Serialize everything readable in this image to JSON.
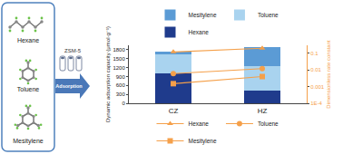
{
  "diagram": {
    "molecules": [
      "Hexane",
      "Toluene",
      "Mesitylene"
    ],
    "zeolite": "ZSM-5",
    "arrow": "Adsorption"
  },
  "chart_data": {
    "type": "bar",
    "stacked": true,
    "grid": false,
    "legend": "top",
    "log": "y2",
    "categories": [
      "CZ",
      "HZ"
    ],
    "y_label": "Dynamic adsorption capacity (μmol·g⁻¹)",
    "y2_label": "Dimensionless rate constant",
    "ylim": [
      0,
      1950
    ],
    "yticks": [
      0,
      300,
      600,
      900,
      1200,
      1500,
      1800
    ],
    "y2lim": [
      0.0001,
      0.3
    ],
    "y2ticks": [
      {
        "value": 0.0001,
        "label": "1E-4"
      },
      0.001,
      0.01,
      0.1
    ],
    "series": [
      {
        "name": "Hexane",
        "type": "bar",
        "color": "#1f3b8c",
        "values": [
          1010,
          440
        ]
      },
      {
        "name": "Toluene",
        "type": "bar",
        "color": "#a9d3ef",
        "values": [
          630,
          800
        ]
      },
      {
        "name": "Mesitylene",
        "type": "bar",
        "color": "#5b9bd5",
        "values": [
          90,
          650
        ]
      },
      {
        "name": "Hexane",
        "type": "line",
        "axis": "y2",
        "marker": "triangle-up",
        "color": "#f5a04a",
        "values": [
          0.12,
          0.2
        ]
      },
      {
        "name": "Toluene",
        "type": "line",
        "axis": "y2",
        "marker": "circle",
        "color": "#f5a04a",
        "values": [
          0.006,
          0.012
        ]
      },
      {
        "name": "Mesitylene",
        "type": "line",
        "axis": "y2",
        "marker": "square",
        "color": "#f5a04a",
        "values": [
          0.0015,
          0.004
        ]
      }
    ]
  }
}
